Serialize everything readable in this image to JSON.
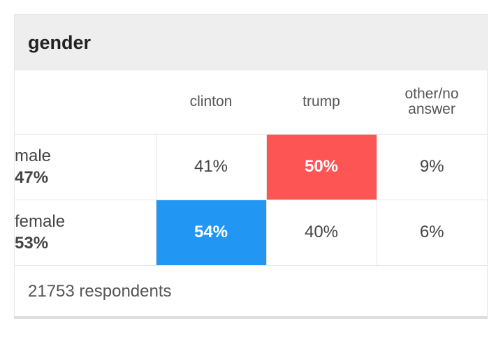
{
  "header": {
    "title": "gender"
  },
  "columns": [
    "clinton",
    "trump",
    "other/no answer"
  ],
  "rows": [
    {
      "label": "male",
      "share": "47%",
      "cells": [
        "41%",
        "50%",
        "9%"
      ]
    },
    {
      "label": "female",
      "share": "53%",
      "cells": [
        "54%",
        "40%",
        "6%"
      ]
    }
  ],
  "footer": {
    "respondents": "21753 respondents"
  },
  "colors": {
    "trump": "#fd5454",
    "clinton": "#2196f3"
  },
  "chart_data": {
    "type": "table",
    "title": "gender",
    "columns": [
      "clinton",
      "trump",
      "other/no answer"
    ],
    "rows": [
      {
        "group": "male",
        "share": 47,
        "values": [
          41,
          50,
          9
        ],
        "leader": "trump"
      },
      {
        "group": "female",
        "share": 53,
        "values": [
          54,
          40,
          6
        ],
        "leader": "clinton"
      }
    ],
    "note": "21753 respondents"
  }
}
